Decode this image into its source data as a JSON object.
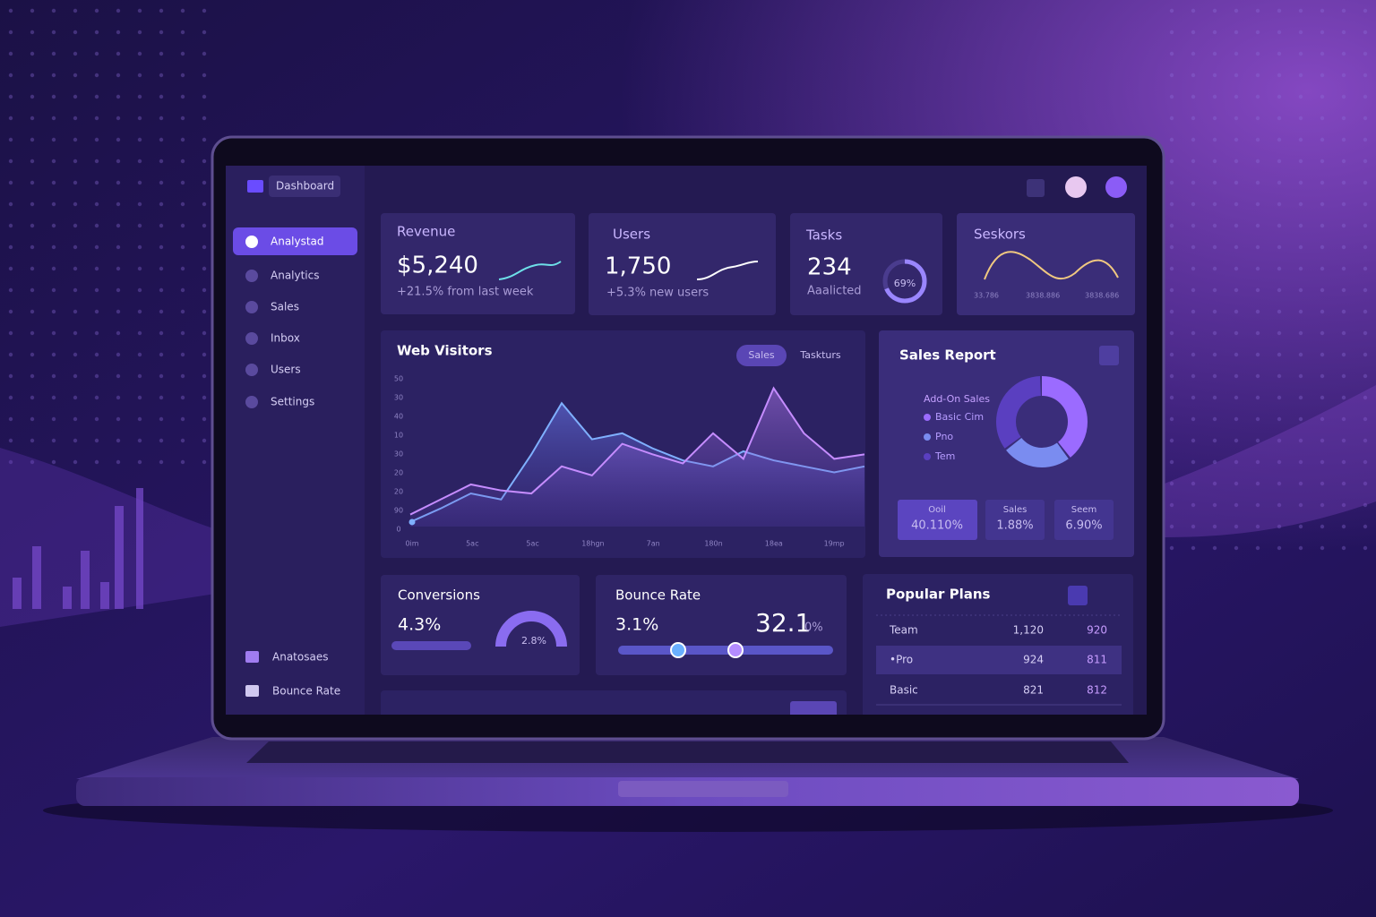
{
  "sidebar": {
    "brand": "Dashboard",
    "nav": [
      "Analystad",
      "Analytics",
      "Sales",
      "Inbox",
      "Users",
      "Settings"
    ],
    "bottom": [
      "Anatosaes",
      "Bounce Rate"
    ]
  },
  "cards": [
    {
      "title": "Revenue",
      "value": "$5,240",
      "note": "+21.5% from last week"
    },
    {
      "title": "Users",
      "value": "1,750",
      "note": "+5.3% new users"
    },
    {
      "title": "Tasks",
      "value": "234",
      "note": "Aaalicted",
      "ring": "69%"
    },
    {
      "title": "Seskors",
      "labels": [
        "33.786",
        "3838.886",
        "3838.686"
      ]
    }
  ],
  "web_visitors": {
    "title": "Web Visitors",
    "tabs": [
      "Sales",
      "Taskturs"
    ],
    "ylabels": [
      "50",
      "30",
      "40",
      "10",
      "30",
      "20",
      "20",
      "90",
      "0"
    ],
    "xlabels": [
      "0im",
      "5ac",
      "5ac",
      "18hgn",
      "7an",
      "180n",
      "18ea",
      "19mp"
    ],
    "ylim": [
      0,
      100
    ],
    "series": [
      {
        "color": "#7fb0ff",
        "values": [
          3,
          12,
          22,
          18,
          48,
          82,
          58,
          62,
          52,
          44,
          40,
          50,
          44,
          40,
          36,
          40
        ]
      },
      {
        "color": "#c58cff",
        "values": [
          8,
          18,
          28,
          24,
          22,
          40,
          34,
          55,
          48,
          42,
          62,
          45,
          92,
          62,
          45,
          48
        ]
      }
    ]
  },
  "sales_report": {
    "title": "Sales Report",
    "legend_title": "Add-On Sales",
    "legend": [
      "Basic Cim",
      "Pno",
      "Tem"
    ],
    "donut": {
      "values": [
        40,
        25,
        35
      ],
      "colors": [
        "#9b6bff",
        "#7a8cf0",
        "#5a3fc0"
      ]
    },
    "stats": [
      {
        "label": "Ooil",
        "value": "40.110%"
      },
      {
        "label": "Sales",
        "value": "1.88%"
      },
      {
        "label": "Seem",
        "value": "6.90%"
      }
    ]
  },
  "conversions": {
    "title": "Conversions",
    "value": "4.3%",
    "gauge": "2.8%"
  },
  "bounce_rate": {
    "title": "Bounce Rate",
    "value": "3.1%",
    "big": "32.1",
    "unit": "0%"
  },
  "popular_plans": {
    "title": "Popular Plans",
    "rows": [
      [
        "Team",
        "1,120",
        "920"
      ],
      [
        "•Pro",
        "924",
        "811"
      ],
      [
        "Basic",
        "821",
        "812"
      ]
    ]
  }
}
